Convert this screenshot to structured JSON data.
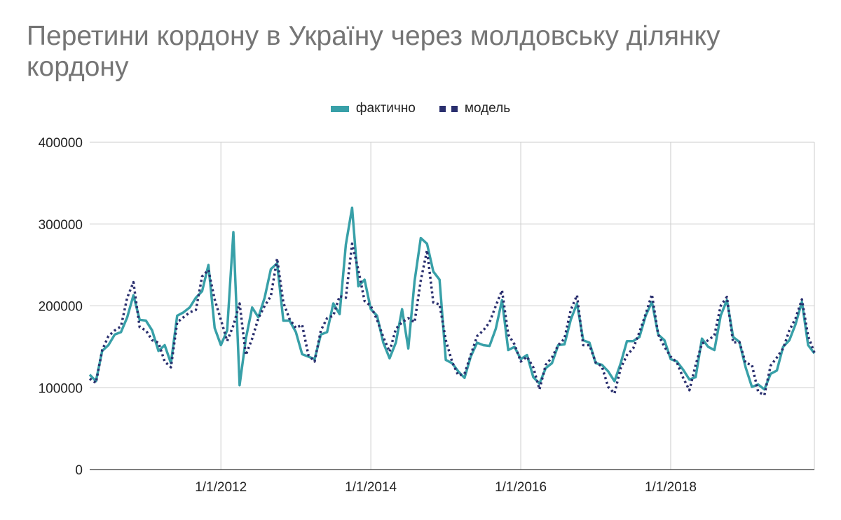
{
  "chart_data": {
    "type": "line",
    "title": "Перетини кордону в Україну через молдовську ділянку кордону",
    "xlabel": "",
    "ylabel": "",
    "ylim": [
      0,
      400000
    ],
    "xlim": [
      "2010-04-01",
      "2019-12-01"
    ],
    "yticks": [
      "0",
      "100000",
      "200000",
      "300000",
      "400000"
    ],
    "xticks": [
      {
        "date": "2012-01-01",
        "label": "1/1/2012"
      },
      {
        "date": "2014-01-01",
        "label": "1/1/2014"
      },
      {
        "date": "2016-01-01",
        "label": "1/1/2016"
      },
      {
        "date": "2018-01-01",
        "label": "1/1/2018"
      }
    ],
    "grid": true,
    "legend_position": "top-center",
    "x_start": "2010-04",
    "x_frequency": "monthly",
    "series": [
      {
        "name": "фактично",
        "color": "#38a0a8",
        "style": "solid",
        "values": [
          116000,
          108000,
          145000,
          152000,
          165000,
          168000,
          186000,
          213000,
          183000,
          182000,
          170000,
          145000,
          152000,
          130000,
          188000,
          192000,
          198000,
          210000,
          218000,
          250000,
          173000,
          152000,
          170000,
          290000,
          103000,
          160000,
          198000,
          186000,
          210000,
          245000,
          252000,
          182000,
          182000,
          168000,
          141000,
          138000,
          135000,
          165000,
          168000,
          203000,
          190000,
          275000,
          320000,
          224000,
          232000,
          196000,
          188000,
          155000,
          136000,
          155000,
          196000,
          148000,
          230000,
          283000,
          276000,
          242000,
          232000,
          134000,
          130000,
          120000,
          112000,
          138000,
          155000,
          152000,
          151000,
          172000,
          207000,
          146000,
          150000,
          135000,
          140000,
          113000,
          105000,
          124000,
          130000,
          152000,
          153000,
          183000,
          203000,
          158000,
          155000,
          130000,
          128000,
          120000,
          108000,
          130000,
          157000,
          157000,
          162000,
          188000,
          205000,
          165000,
          158000,
          135000,
          132000,
          122000,
          110000,
          113000,
          160000,
          150000,
          146000,
          188000,
          207000,
          162000,
          156000,
          125000,
          101000,
          104000,
          98000,
          117000,
          121000,
          150000,
          158000,
          178000,
          205000,
          152000,
          142000
        ]
      },
      {
        "name": "модель",
        "color": "#2a2f6e",
        "style": "dotted",
        "values": [
          111000,
          106000,
          146000,
          163000,
          170000,
          175000,
          210000,
          229000,
          174000,
          170000,
          158000,
          155000,
          132000,
          125000,
          180000,
          186000,
          192000,
          195000,
          236000,
          244000,
          208000,
          183000,
          157000,
          176000,
          203000,
          140000,
          160000,
          185000,
          200000,
          212000,
          258000,
          204000,
          184000,
          173000,
          177000,
          140000,
          132000,
          170000,
          185000,
          188000,
          212000,
          210000,
          276000,
          244000,
          206000,
          200000,
          183000,
          162000,
          144000,
          172000,
          180000,
          185000,
          180000,
          231000,
          268000,
          204000,
          202000,
          158000,
          132000,
          115000,
          117000,
          140000,
          163000,
          170000,
          180000,
          200000,
          219000,
          165000,
          153000,
          132000,
          138000,
          125000,
          98000,
          128000,
          137000,
          152000,
          160000,
          195000,
          213000,
          152000,
          152000,
          131000,
          126000,
          101000,
          93000,
          124000,
          140000,
          148000,
          168000,
          190000,
          214000,
          165000,
          150000,
          138000,
          131000,
          112000,
          97000,
          128000,
          154000,
          158000,
          164000,
          200000,
          211000,
          155000,
          156000,
          130000,
          128000,
          95000,
          91000,
          127000,
          137000,
          148000,
          170000,
          185000,
          208000,
          163000,
          143000
        ]
      }
    ]
  }
}
